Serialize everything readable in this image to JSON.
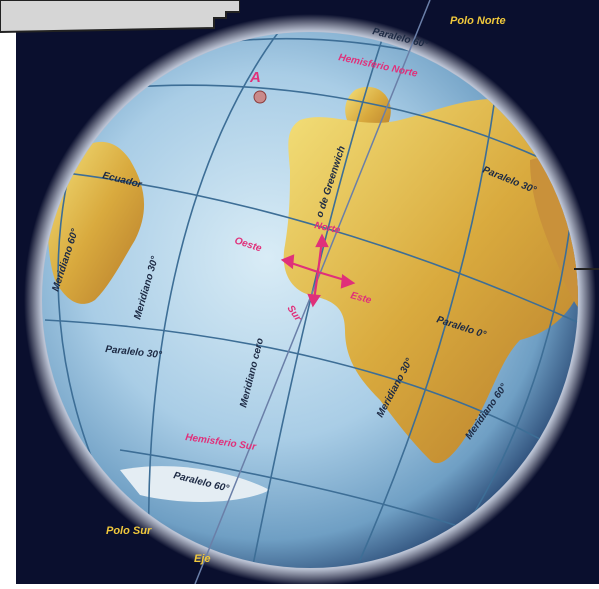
{
  "map": {
    "labels": {
      "polo_norte": "Polo Norte",
      "polo_sur": "Polo Sur",
      "eje": "Eje",
      "punto_a": "A",
      "hemisferio_norte": "Hemisferio Norte",
      "hemisferio_sur": "Hemisferio Sur",
      "paralelo_60_n": "Paralelo 60°",
      "paralelo_30_n": "Paralelo 30°",
      "ecuador": "Ecuador",
      "paralelo_0": "Paralelo 0°",
      "paralelo_30_s": "Paralelo 30°",
      "paralelo_60_s": "Paralelo 60°",
      "meridiano_60_w": "Meridiano 60°",
      "meridiano_30_w": "Meridiano 30°",
      "meridiano_cero": "Meridiano cero",
      "greenwich": "o de Greenwich",
      "meridiano_30_e": "Meridiano 30°",
      "meridiano_60_e": "Meridiano 60°",
      "norte": "Norte",
      "sur": "Sur",
      "este": "Este",
      "oeste": "Oeste"
    },
    "colors": {
      "space": "#0a0f2e",
      "ocean": "#a9cde6",
      "land": "#d8b24a",
      "grid": "#3d6e96",
      "axis": "#6a7fa8",
      "pole_label": "#f0c83c",
      "hemisphere_label": "#e0307a",
      "direction_label": "#e0307a",
      "grid_label": "#1d2a44"
    }
  }
}
